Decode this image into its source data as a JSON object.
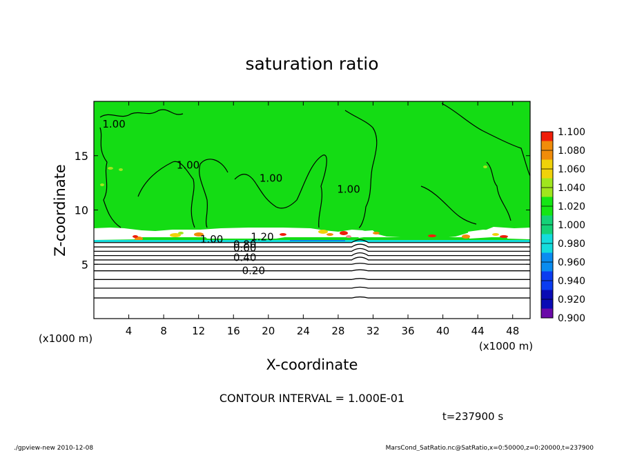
{
  "chart_data": {
    "type": "heatmap",
    "title": "saturation ratio",
    "xlabel": "X-coordinate",
    "ylabel": "Z-coordinate",
    "x_unit_label": "(x1000 m)",
    "x_unit_label_right": "(x1000 m)",
    "xlim": [
      0,
      50
    ],
    "ylim": [
      0,
      20
    ],
    "x_ticks": [
      4,
      8,
      12,
      16,
      20,
      24,
      28,
      32,
      36,
      40,
      44,
      48
    ],
    "y_ticks": [
      5,
      10,
      15
    ],
    "colorbar": {
      "levels": [
        "0.900",
        "0.920",
        "0.940",
        "0.960",
        "0.980",
        "1.000",
        "1.020",
        "1.040",
        "1.060",
        "1.080",
        "1.100"
      ],
      "colors": [
        "#6a0aa8",
        "#0a0ab4",
        "#0a3cf0",
        "#0a8cf0",
        "#14dcdc",
        "#14d278",
        "#14e614",
        "#a0e61e",
        "#f0d20a",
        "#f08c0a",
        "#f01e0a",
        "#f08c8c"
      ]
    },
    "contour_labels": [
      {
        "text": "1.00",
        "x": 2.3,
        "z": 17.6
      },
      {
        "text": "1.00",
        "x": 10.8,
        "z": 13.8
      },
      {
        "text": "1.00",
        "x": 20.3,
        "z": 12.6
      },
      {
        "text": "1.00",
        "x": 29.2,
        "z": 11.6
      },
      {
        "text": "1.00",
        "x": 13.5,
        "z": 7.0
      },
      {
        "text": "1.20",
        "x": 19.3,
        "z": 7.2
      },
      {
        "text": "0.80",
        "x": 17.3,
        "z": 6.5
      },
      {
        "text": "0.60",
        "x": 17.3,
        "z": 6.2
      },
      {
        "text": "0.40",
        "x": 17.3,
        "z": 5.3
      },
      {
        "text": "0.20",
        "x": 18.3,
        "z": 4.1
      }
    ],
    "lower_boundary_line_z": [
      7.0,
      6.6,
      6.2,
      5.8,
      5.4,
      5.0,
      4.4,
      3.6,
      2.8,
      1.9
    ]
  },
  "contour_interval_text": "CONTOUR INTERVAL = 1.000E-01",
  "time_text": "t=237900 s",
  "footer_left": "./gpview-new   2010-12-08",
  "footer_right": "MarsCond_SatRatio.nc@SatRatio,x=0:50000,z=0:20000,t=237900"
}
